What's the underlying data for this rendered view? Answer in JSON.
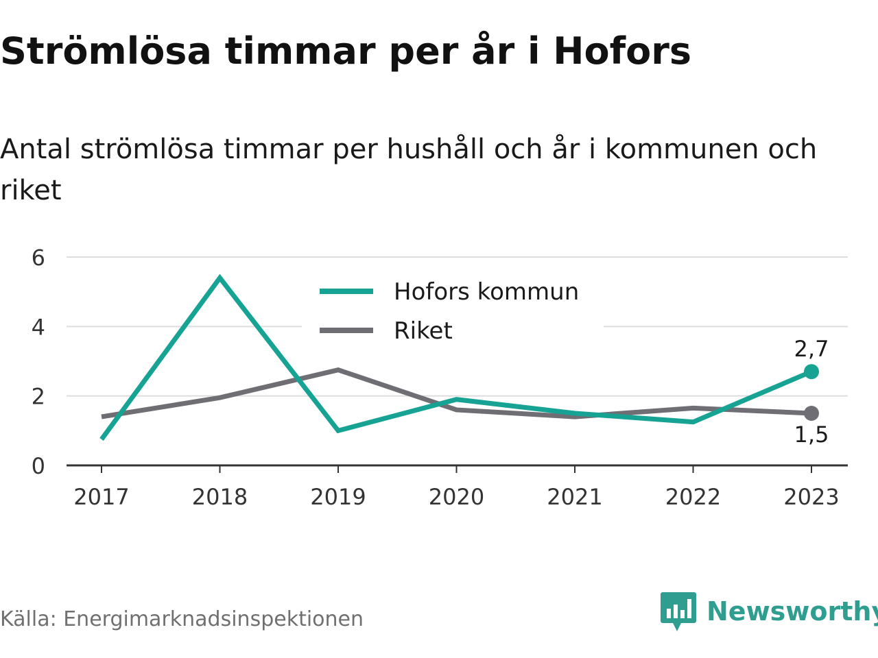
{
  "header": {
    "title": "Strömlösa timmar per år i Hofors",
    "subtitle": "Antal strömlösa timmar per hushåll och år i kommunen och riket"
  },
  "footer": {
    "source": "Källa: Energimarknadsinspektionen",
    "brand": "Newsworthy"
  },
  "chart_data": {
    "type": "line",
    "title": "Strömlösa timmar per år i Hofors",
    "subtitle": "Antal strömlösa timmar per hushåll och år i kommunen och riket",
    "categories": [
      "2017",
      "2018",
      "2019",
      "2020",
      "2021",
      "2022",
      "2023"
    ],
    "ylim": [
      0,
      6
    ],
    "yticks": [
      0,
      2,
      4,
      6
    ],
    "grid": true,
    "legend_position": "top-center",
    "series": [
      {
        "name": "Hofors kommun",
        "color": "#16a394",
        "values": [
          0.75,
          5.4,
          1.0,
          1.9,
          1.5,
          1.25,
          2.7
        ],
        "end_label": "2,7"
      },
      {
        "name": "Riket",
        "color": "#6f6e74",
        "values": [
          1.4,
          1.95,
          2.75,
          1.6,
          1.4,
          1.65,
          1.5
        ],
        "end_label": "1,5"
      }
    ]
  },
  "colors": {
    "grid": "#dddddd",
    "axis": "#333333",
    "tick_text": "#333333",
    "brand": "#2f9e91"
  }
}
